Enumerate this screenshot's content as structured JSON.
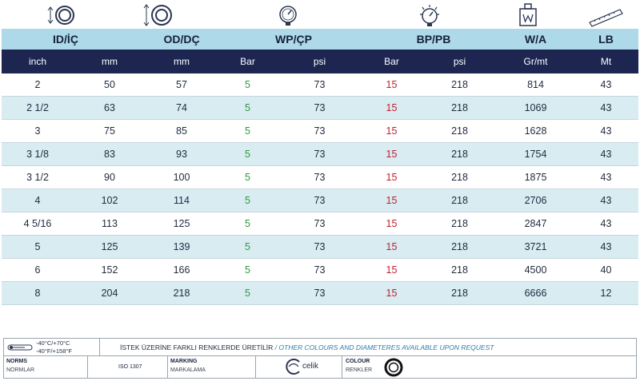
{
  "icons": [
    "id-ring-icon",
    "od-ring-icon",
    "pressure-gauge-icon",
    "burst-gauge-icon",
    "weight-icon",
    "length-ruler-icon"
  ],
  "colors": {
    "header_light": "#aed9e8",
    "header_dark": "#1c2651",
    "row_alt": "#d8ecf2",
    "wp_value": "#2c9a3a",
    "bp_value": "#c21f2b"
  },
  "headers": {
    "id": "ID/İÇ",
    "od": "OD/DÇ",
    "wp": "WP/ÇP",
    "bp": "BP/PB",
    "wa": "W/A",
    "lb": "LB"
  },
  "units": [
    "inch",
    "mm",
    "mm",
    "Bar",
    "psi",
    "Bar",
    "psi",
    "Gr/mt",
    "Mt"
  ],
  "rows": [
    [
      "2",
      "50",
      "57",
      "5",
      "73",
      "15",
      "218",
      "814",
      "43"
    ],
    [
      "2 1/2",
      "63",
      "74",
      "5",
      "73",
      "15",
      "218",
      "1069",
      "43"
    ],
    [
      "3",
      "75",
      "85",
      "5",
      "73",
      "15",
      "218",
      "1628",
      "43"
    ],
    [
      "3 1/8",
      "83",
      "93",
      "5",
      "73",
      "15",
      "218",
      "1754",
      "43"
    ],
    [
      "3 1/2",
      "90",
      "100",
      "5",
      "73",
      "15",
      "218",
      "1875",
      "43"
    ],
    [
      "4",
      "102",
      "114",
      "5",
      "73",
      "15",
      "218",
      "2706",
      "43"
    ],
    [
      "4 5/16",
      "113",
      "125",
      "5",
      "73",
      "15",
      "218",
      "2847",
      "43"
    ],
    [
      "5",
      "125",
      "139",
      "5",
      "73",
      "15",
      "218",
      "3721",
      "43"
    ],
    [
      "6",
      "152",
      "166",
      "5",
      "73",
      "15",
      "218",
      "4500",
      "40"
    ],
    [
      "8",
      "204",
      "218",
      "5",
      "73",
      "15",
      "218",
      "6666",
      "12"
    ]
  ],
  "footer": {
    "temp_c": "-40°C/+70°C",
    "temp_f": "-40°F/+158°F",
    "note_tr": "İSTEK ÜZERİNE FARKLI RENKLERDE ÜRETİLİR",
    "note_sep": " / ",
    "note_en": "OTHER COLOURS AND DIAMETERES AVAILABLE UPON REQUEST",
    "norms_en": "NORMS",
    "norms_tr": "NORMLAR",
    "norm_value": "ISO 1307",
    "marking_en": "MARKING",
    "marking_tr": "MARKALAMA",
    "marking_value": "celik",
    "colour_en": "COLOUR",
    "colour_tr": "RENKLER",
    "colour_icon": "black-ring-icon"
  }
}
